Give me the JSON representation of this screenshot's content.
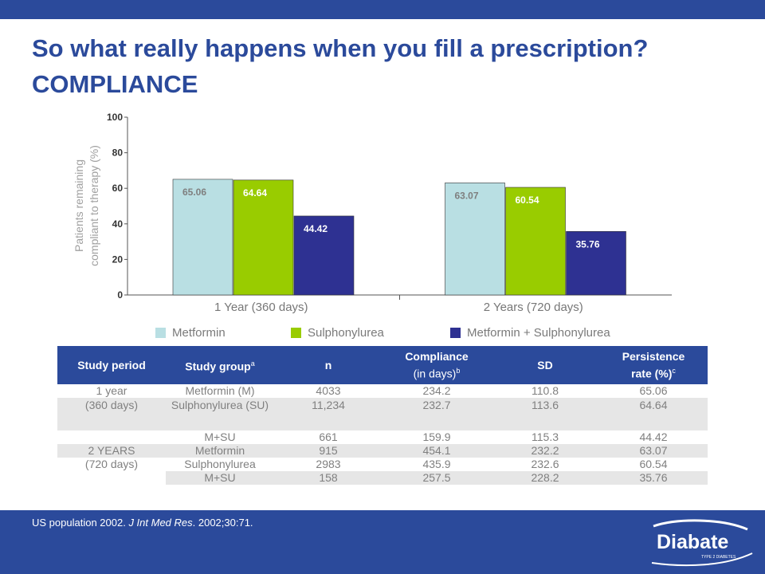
{
  "slide": {
    "title_line1": "So what really happens when you fill a prescription?",
    "title_line2": "COMPLIANCE"
  },
  "chart_data": {
    "type": "bar",
    "categories": [
      "1 Year (360 days)",
      "2 Years (720 days)"
    ],
    "series": [
      {
        "name": "Metformin",
        "values": [
          65.06,
          63.07
        ],
        "labels": [
          "65.06",
          "63.07"
        ],
        "color": "#b9dfe3",
        "label_color": "#7f7f7f"
      },
      {
        "name": "Sulphonylurea",
        "values": [
          64.64,
          60.54
        ],
        "labels": [
          "64.64",
          "60.54"
        ],
        "color": "#99cc00",
        "label_color": "#ffffff"
      },
      {
        "name": "Metformin + Sulphonylurea",
        "values": [
          44.42,
          35.76
        ],
        "labels": [
          "44.42",
          "35.76"
        ],
        "color": "#2e3192",
        "label_color": "#ffffff"
      }
    ],
    "ylabel_line1": "Patients remaining",
    "ylabel_line2": "compliant to therapy (%)",
    "ylim": [
      0,
      100
    ],
    "yticks": [
      "0",
      "20",
      "40",
      "60",
      "80",
      "100"
    ],
    "ytick_values": [
      0,
      20,
      40,
      60,
      80,
      100
    ],
    "grid": false,
    "legend": "bottom"
  },
  "table": {
    "headers": {
      "period": "Study period",
      "group": "Study group",
      "group_sup": "a",
      "n": "n",
      "compliance_1": "Compliance",
      "compliance_2": "(in days)",
      "compliance_sup": "b",
      "sd": "SD",
      "persistence_1": "Persistence",
      "persistence_2": "rate (%)",
      "persistence_sup": "c"
    },
    "rows": [
      {
        "period": "1 year",
        "group": "Metformin (M)",
        "n": "4033",
        "compliance": "234.2",
        "sd": "110.8",
        "persistence": "65.06"
      },
      {
        "period": "(360 days)",
        "group": "Sulphonylurea (SU)",
        "n": "11,234",
        "compliance": "232.7",
        "sd": "113.6",
        "persistence": "64.64"
      },
      {
        "period": "",
        "group": "M+SU",
        "n": "661",
        "compliance": "159.9",
        "sd": "115.3",
        "persistence": "44.42"
      },
      {
        "period": "2 YEARS",
        "group": "Metformin",
        "n": "915",
        "compliance": "454.1",
        "sd": "232.2",
        "persistence": "63.07"
      },
      {
        "period": "(720 days)",
        "group": "Sulphonylurea",
        "n": "2983",
        "compliance": "435.9",
        "sd": "232.6",
        "persistence": "60.54"
      },
      {
        "period": "",
        "group": "M+SU",
        "n": "158",
        "compliance": "257.5",
        "sd": "228.2",
        "persistence": "35.76"
      }
    ]
  },
  "footer": {
    "source_plain": "US population 2002. ",
    "source_journal": "J Int Med Res",
    "source_rest": ". 2002;30:71."
  },
  "logo": {
    "brand": "Diabate",
    "tagline": "TYPE 2 DIABETES"
  },
  "colors": {
    "brand_blue": "#2b4a9b",
    "metformin": "#b9dfe3",
    "sulphonylurea": "#99cc00",
    "combination": "#2e3192"
  }
}
